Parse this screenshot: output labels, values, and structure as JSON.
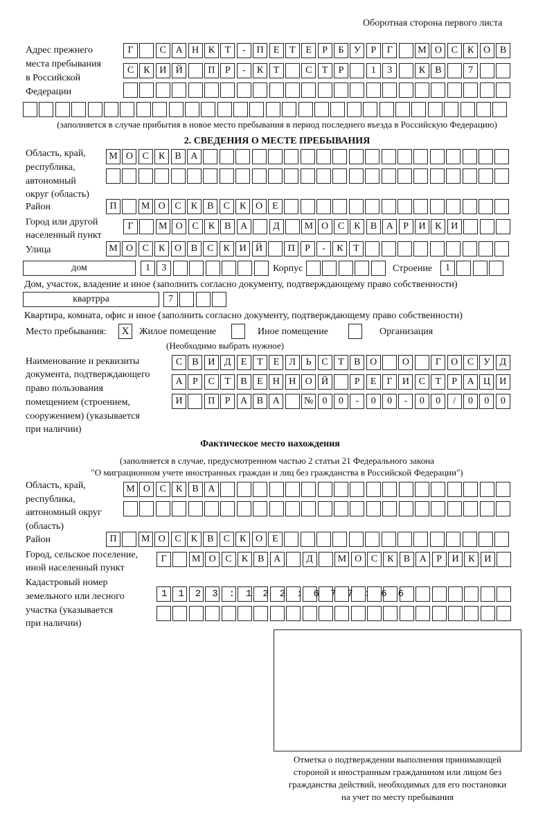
{
  "header": {
    "side_note": "Оборотная сторона первого листа"
  },
  "previous_address": {
    "label": [
      "Адрес прежнего",
      "места пребывания",
      "в Российской",
      "Федерации"
    ],
    "rows": [
      "Г САНКТ-ПЕТЕРБУРГ МОСКОВ",
      "СКИЙ ПР-КТ СТР 13 КВ 7",
      "",
      ""
    ],
    "note": "(заполняется в случае прибытия в новое место пребывания в период последнего въезда в Российскую Федерацию)"
  },
  "section2": {
    "title": "2. СВЕДЕНИЯ О МЕСТЕ ПРЕБЫВАНИЯ",
    "region_label": [
      "Область, край,",
      "республика,",
      "автономный",
      "округ (область)"
    ],
    "region_rows": [
      "МОСКВА",
      ""
    ],
    "district_label": "Район",
    "district": "П МОСКВСКОЕ",
    "city_label": [
      "Город или другой",
      "населенный пункт"
    ],
    "city": "Г МОСКВА Д МОСКВАРИКИ",
    "street_label": "Улица",
    "street": "МОСКОВСКИЙ ПР-КТ",
    "house_type": "дом",
    "house_number": "13",
    "korpus_label": "Корпус",
    "korpus": "",
    "building_label": "Строение",
    "building": "1",
    "house_note": "Дом, участок, владение и иное (заполнить согласно документу, подтверждающему право собственности)",
    "apartment_type": "квартрра",
    "apartment_number": "7",
    "apartment_note": "Квартира, комната, офис и иное (заполнить согласно документу, подтверждающему право собственности)",
    "stay_place_label": "Место пребывания:",
    "options": [
      {
        "label": "Жилое помещение",
        "checked": true,
        "mark": "Х"
      },
      {
        "label": "Иное помещение",
        "checked": false,
        "mark": ""
      },
      {
        "label": "Организация",
        "checked": false,
        "mark": ""
      }
    ],
    "choose_note": "(Необходимо выбрать нужное)",
    "document_label": [
      "Наименование и реквизиты",
      "документа, подтверждающего",
      "право пользования",
      "помещением (строением,",
      "сооружением) (указывается",
      "при наличии)"
    ],
    "document_rows": [
      "СВИДЕТЕЛЬСТВО О ГОСУД",
      "АРСТВЕННОЙ РЕГИСТРАЦИ",
      "И ПРАВА №00-00-00/000"
    ]
  },
  "actual": {
    "title": "Фактическое место нахождения",
    "note1": "(заполняется в случае, предусмотренном частью 2 статьи 21 Федерального закона",
    "note2": "\"О миграционном учете иностранных граждан и лиц без гражданства в Российской Федерации\")",
    "region_label": [
      "Область, край,",
      "республика,",
      "автономный округ",
      "(область)"
    ],
    "region_rows": [
      "МОСКВА",
      ""
    ],
    "district_label": "Район",
    "district": "П МОСКВСКОЕ",
    "city_label": [
      "Город, сельское поселение,",
      "иной населенный пункт"
    ],
    "city": "Г МОСКВА Д МОСКВАРИКИ",
    "cadastral_label": [
      "Кадастровый номер",
      "земельного или лесного",
      "участка (указывается",
      "при наличии)"
    ],
    "cadastral_rows": [
      "1123:122:677:66",
      ""
    ]
  },
  "stamp": {
    "caption": [
      "Отметка о подтверждении выполнения принимающей",
      "стороной и иностранным гражданином или лицом без",
      "гражданства действий, необходимых для его постановки",
      "на учет по месту пребывания"
    ]
  }
}
